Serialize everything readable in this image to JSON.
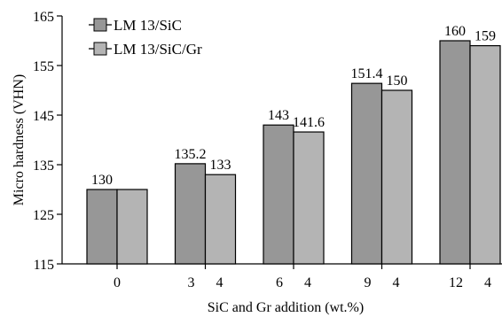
{
  "chart_data": {
    "type": "bar",
    "xlabel": "SiC and Gr addition (wt.%)",
    "ylabel": "Micro hardness (VHN)",
    "ylim": [
      115,
      165
    ],
    "yticks": [
      "115",
      "125",
      "135",
      "145",
      "155",
      "165"
    ],
    "grid": false,
    "legend_position": "top-left",
    "categories": [
      "0",
      "3  4",
      "6  4",
      "9  4",
      "12  4"
    ],
    "series": [
      {
        "name": "LM 13/SiC",
        "color": "#979797",
        "values": [
          130,
          135.2,
          143,
          151.4,
          160
        ],
        "labels": [
          "130",
          "135.2",
          "143",
          "151.4",
          "160"
        ]
      },
      {
        "name": "LM 13/SiC/Gr",
        "color": "#b4b4b4",
        "values": [
          130,
          133,
          141.6,
          150,
          159
        ],
        "labels": [
          "",
          "133",
          "141.6",
          "150",
          "159"
        ]
      }
    ]
  }
}
